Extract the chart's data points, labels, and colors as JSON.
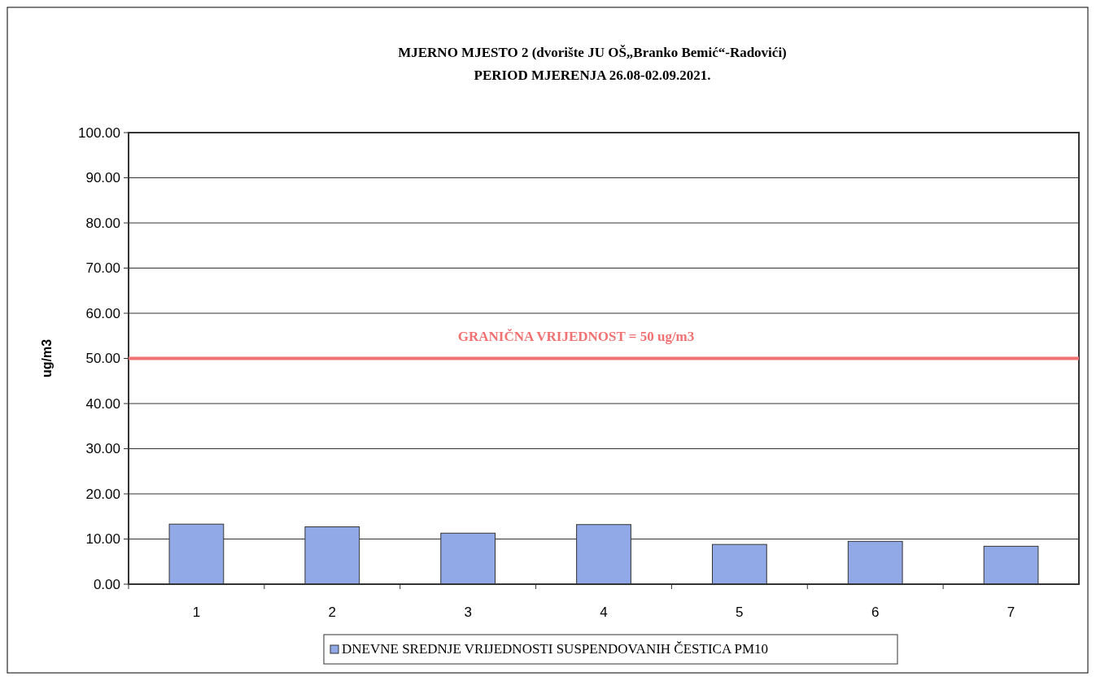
{
  "chart_data": {
    "type": "bar",
    "title": "MJERNO MJESTO 2 (dvorište JU OŠ„Branko Bemić“-Radovići)",
    "subtitle": "PERIOD MJERENJA 26.08-02.09.2021.",
    "ylabel": "ug/m3",
    "categories": [
      "1",
      "2",
      "3",
      "4",
      "5",
      "6",
      "7"
    ],
    "series": [
      {
        "name": "DNEVNE SREDNJE VRIJEDNOSTI SUSPENDOVANIH ČESTICA PM10",
        "color": "#92a9e8",
        "values": [
          13.3,
          12.7,
          11.3,
          13.2,
          8.8,
          9.5,
          8.4
        ]
      }
    ],
    "ylim": [
      0,
      100
    ],
    "yticks": [
      {
        "value": 0,
        "label": "0.00"
      },
      {
        "value": 10,
        "label": "10.00"
      },
      {
        "value": 20,
        "label": "20.00"
      },
      {
        "value": 30,
        "label": "30.00"
      },
      {
        "value": 40,
        "label": "40.00"
      },
      {
        "value": 50,
        "label": "50.00"
      },
      {
        "value": 60,
        "label": "60.00"
      },
      {
        "value": 70,
        "label": "70.00"
      },
      {
        "value": 80,
        "label": "80.00"
      },
      {
        "value": 90,
        "label": "90.00"
      },
      {
        "value": 100,
        "label": "100.00"
      }
    ],
    "ref_lines": [
      {
        "axis": "y",
        "value": 50,
        "label": "GRANIČNA VRIJEDNOST = 50 ug/m3",
        "color": "#f07272"
      }
    ],
    "grid": "y",
    "legend": "bottom"
  }
}
